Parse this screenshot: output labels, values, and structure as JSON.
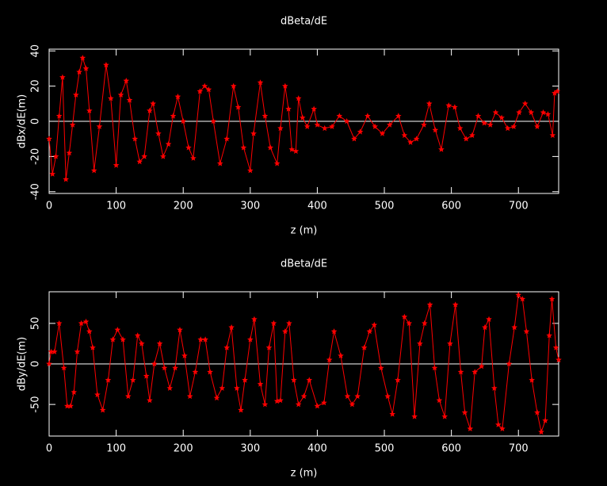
{
  "chart_data": [
    {
      "type": "line",
      "title": "dBeta/dE",
      "xlabel": "z (m)",
      "ylabel": "dBx/dE(m)",
      "x": [
        0,
        5,
        10,
        15,
        20,
        25,
        30,
        35,
        40,
        45,
        50,
        55,
        60,
        67,
        75,
        85,
        92,
        100,
        107,
        115,
        120,
        128,
        135,
        142,
        150,
        155,
        163,
        170,
        178,
        185,
        192,
        200,
        208,
        215,
        225,
        232,
        238,
        245,
        255,
        265,
        275,
        282,
        290,
        300,
        305,
        315,
        322,
        330,
        340,
        345,
        352,
        357,
        362,
        368,
        372,
        378,
        385,
        395,
        400,
        411,
        422,
        433,
        444,
        455,
        464,
        475,
        486,
        497,
        508,
        521,
        530,
        539,
        548,
        559,
        567,
        576,
        585,
        596,
        605,
        613,
        622,
        631,
        640,
        649,
        658,
        666,
        675,
        684,
        693,
        701,
        710,
        719,
        728,
        737,
        744,
        751,
        754,
        758
      ],
      "series": [
        {
          "color": "#ff0000",
          "marker": "star",
          "values": [
            -10,
            -30,
            -20,
            3,
            25,
            -33,
            -18,
            -2,
            15,
            28,
            36,
            30,
            6,
            -28,
            -3,
            32,
            13,
            -25,
            15,
            23,
            12,
            -10,
            -23,
            -20,
            6,
            10,
            -7,
            -20,
            -13,
            3,
            14,
            0,
            -15,
            -21,
            17,
            20,
            18,
            0,
            -24,
            -10,
            20,
            8,
            -15,
            -28,
            -7,
            22,
            3,
            -15,
            -24,
            -4,
            20,
            7,
            -16,
            -17,
            13,
            2,
            -3,
            7,
            -2,
            -4,
            -3,
            3,
            0,
            -10,
            -6,
            3,
            -3,
            -7,
            -2,
            3,
            -8,
            -12,
            -10,
            -2,
            10,
            -5,
            -16,
            9,
            8,
            -4,
            -10,
            -8,
            3,
            -1,
            -2,
            5,
            2,
            -4,
            -3,
            5,
            10,
            5,
            -3,
            5,
            4,
            -8,
            16,
            17
          ]
        }
      ],
      "xlim": [
        0,
        760
      ],
      "xticks": [
        0,
        100,
        200,
        300,
        400,
        500,
        600,
        700
      ],
      "ylim": [
        -41,
        41
      ],
      "yticks": [
        -40,
        -20,
        0,
        20,
        40
      ],
      "zero_line": true
    },
    {
      "type": "line",
      "title": "dBeta/dE",
      "xlabel": "z (m)",
      "ylabel": "dBy/dE(m)",
      "x": [
        0,
        3,
        8,
        15,
        22,
        27,
        32,
        37,
        42,
        48,
        55,
        60,
        65,
        72,
        80,
        88,
        95,
        102,
        110,
        118,
        125,
        132,
        138,
        145,
        150,
        157,
        165,
        172,
        180,
        188,
        195,
        202,
        210,
        218,
        226,
        233,
        240,
        250,
        258,
        265,
        272,
        280,
        286,
        292,
        300,
        306,
        315,
        322,
        328,
        335,
        340,
        345,
        352,
        358,
        365,
        372,
        380,
        388,
        400,
        410,
        418,
        425,
        435,
        445,
        452,
        460,
        470,
        478,
        485,
        495,
        505,
        512,
        520,
        530,
        537,
        545,
        553,
        560,
        568,
        575,
        582,
        590,
        598,
        606,
        614,
        620,
        628,
        635,
        645,
        650,
        656,
        664,
        670,
        676,
        686,
        694,
        700,
        706,
        712,
        720,
        728,
        734,
        740,
        746,
        750,
        756,
        760
      ],
      "series": [
        {
          "color": "#ff0000",
          "marker": "star",
          "values": [
            0,
            15,
            15,
            50,
            -5,
            -52,
            -52,
            -35,
            15,
            50,
            52,
            40,
            20,
            -38,
            -57,
            -20,
            30,
            42,
            30,
            -40,
            -20,
            35,
            25,
            -15,
            -45,
            0,
            25,
            -5,
            -30,
            -5,
            42,
            10,
            -40,
            -10,
            30,
            30,
            -10,
            -42,
            -30,
            20,
            45,
            -30,
            -57,
            -20,
            30,
            55,
            -25,
            -50,
            20,
            50,
            -46,
            -45,
            40,
            50,
            -20,
            -50,
            -40,
            -20,
            -52,
            -48,
            5,
            40,
            10,
            -40,
            -50,
            -40,
            20,
            40,
            48,
            -5,
            -40,
            -62,
            -20,
            58,
            50,
            -65,
            25,
            50,
            73,
            -5,
            -45,
            -65,
            25,
            73,
            -10,
            -60,
            -80,
            -10,
            -3,
            45,
            55,
            -30,
            -75,
            -80,
            0,
            45,
            85,
            80,
            40,
            -20,
            -60,
            -84,
            -70,
            35,
            80,
            20,
            5
          ]
        }
      ],
      "xlim": [
        0,
        760
      ],
      "xticks": [
        0,
        100,
        200,
        300,
        400,
        500,
        600,
        700
      ],
      "ylim": [
        -89,
        89
      ],
      "yticks": [
        -50,
        0,
        50
      ],
      "zero_line": true
    }
  ]
}
